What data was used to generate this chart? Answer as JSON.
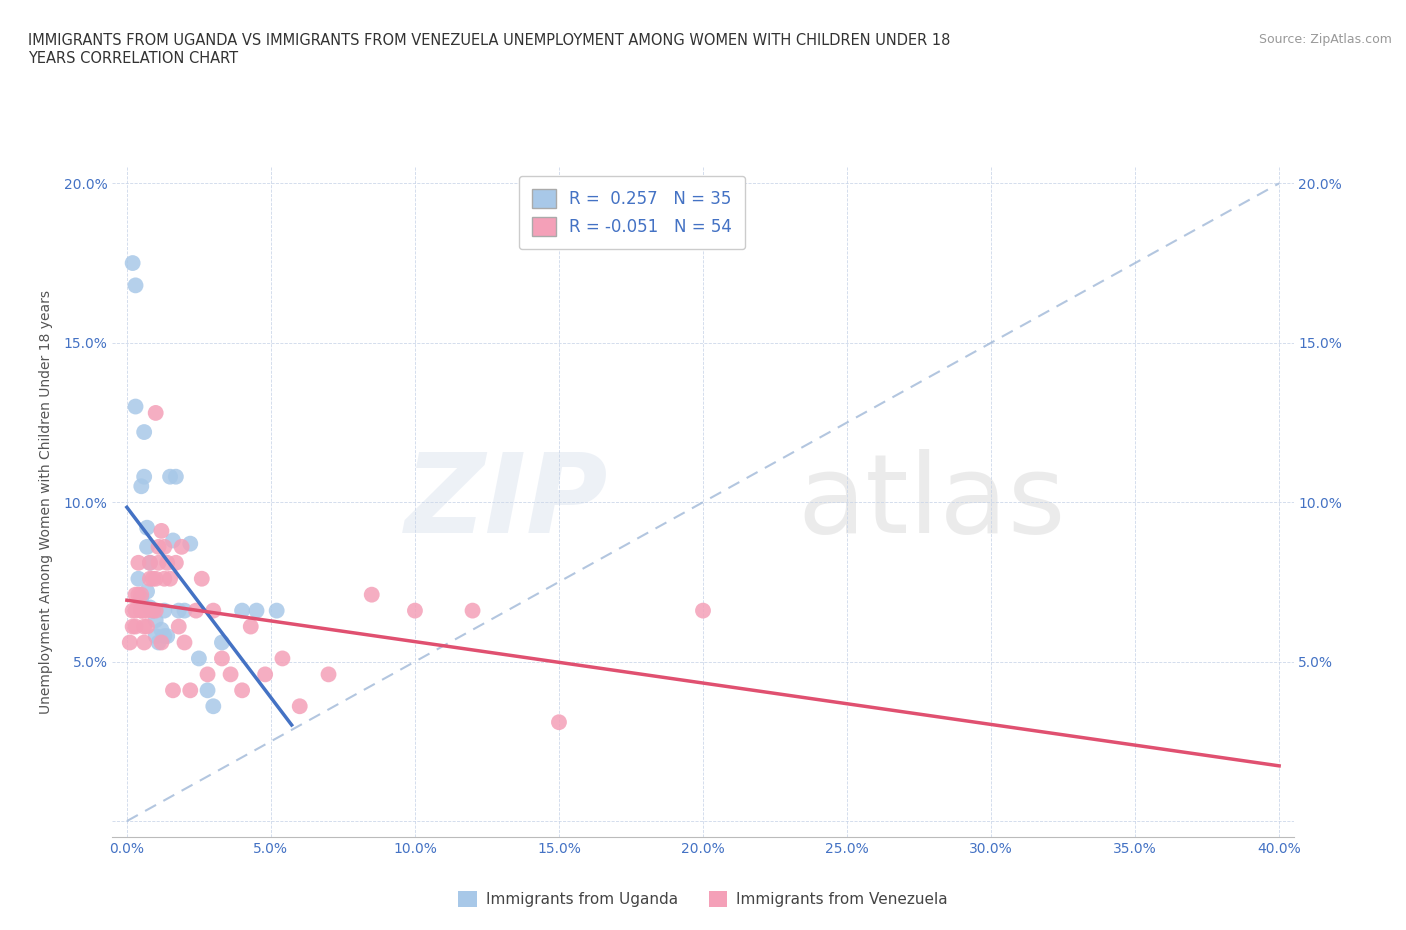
{
  "title_line1": "IMMIGRANTS FROM UGANDA VS IMMIGRANTS FROM VENEZUELA UNEMPLOYMENT AMONG WOMEN WITH CHILDREN UNDER 18",
  "title_line2": "YEARS CORRELATION CHART",
  "source": "Source: ZipAtlas.com",
  "ylabel_label": "Unemployment Among Women with Children Under 18 years",
  "legend_label1": "Immigrants from Uganda",
  "legend_label2": "Immigrants from Venezuela",
  "R1": 0.257,
  "N1": 35,
  "R2": -0.051,
  "N2": 54,
  "xlim": [
    -0.005,
    0.405
  ],
  "ylim": [
    -0.005,
    0.205
  ],
  "xticks": [
    0.0,
    0.05,
    0.1,
    0.15,
    0.2,
    0.25,
    0.3,
    0.35,
    0.4
  ],
  "yticks": [
    0.0,
    0.05,
    0.1,
    0.15,
    0.2
  ],
  "color_uganda": "#a8c8e8",
  "color_venezuela": "#f4a0b8",
  "line_color_uganda": "#4472c4",
  "line_color_venezuela": "#e05070",
  "diag_color": "#a0b8d8",
  "background_color": "#ffffff",
  "uganda_x": [
    0.002,
    0.003,
    0.003,
    0.004,
    0.005,
    0.005,
    0.006,
    0.006,
    0.007,
    0.007,
    0.007,
    0.008,
    0.008,
    0.009,
    0.009,
    0.01,
    0.01,
    0.011,
    0.012,
    0.013,
    0.013,
    0.014,
    0.015,
    0.016,
    0.017,
    0.018,
    0.02,
    0.022,
    0.025,
    0.028,
    0.03,
    0.033,
    0.04,
    0.045,
    0.052
  ],
  "uganda_y": [
    0.175,
    0.168,
    0.13,
    0.076,
    0.105,
    0.07,
    0.122,
    0.108,
    0.092,
    0.086,
    0.072,
    0.081,
    0.067,
    0.066,
    0.066,
    0.063,
    0.058,
    0.056,
    0.06,
    0.066,
    0.058,
    0.058,
    0.108,
    0.088,
    0.108,
    0.066,
    0.066,
    0.087,
    0.051,
    0.041,
    0.036,
    0.056,
    0.066,
    0.066,
    0.066
  ],
  "venezuela_x": [
    0.001,
    0.002,
    0.002,
    0.003,
    0.003,
    0.003,
    0.004,
    0.004,
    0.005,
    0.005,
    0.005,
    0.006,
    0.006,
    0.006,
    0.007,
    0.007,
    0.008,
    0.008,
    0.009,
    0.009,
    0.01,
    0.01,
    0.01,
    0.011,
    0.011,
    0.012,
    0.012,
    0.013,
    0.013,
    0.014,
    0.015,
    0.016,
    0.017,
    0.018,
    0.019,
    0.02,
    0.022,
    0.024,
    0.026,
    0.028,
    0.03,
    0.033,
    0.036,
    0.04,
    0.043,
    0.048,
    0.054,
    0.06,
    0.07,
    0.085,
    0.1,
    0.12,
    0.15,
    0.2
  ],
  "venezuela_y": [
    0.056,
    0.061,
    0.066,
    0.061,
    0.066,
    0.071,
    0.081,
    0.071,
    0.066,
    0.071,
    0.066,
    0.061,
    0.056,
    0.066,
    0.066,
    0.061,
    0.081,
    0.076,
    0.066,
    0.076,
    0.066,
    0.076,
    0.128,
    0.081,
    0.086,
    0.091,
    0.056,
    0.086,
    0.076,
    0.081,
    0.076,
    0.041,
    0.081,
    0.061,
    0.086,
    0.056,
    0.041,
    0.066,
    0.076,
    0.046,
    0.066,
    0.051,
    0.046,
    0.041,
    0.061,
    0.046,
    0.051,
    0.036,
    0.046,
    0.071,
    0.066,
    0.066,
    0.031,
    0.066
  ]
}
